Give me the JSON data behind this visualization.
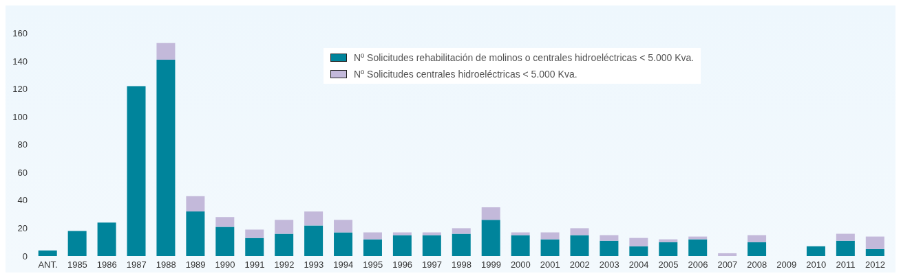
{
  "chart_data": {
    "type": "bar",
    "stacked": true,
    "categories": [
      "ANT.",
      "1985",
      "1986",
      "1987",
      "1988",
      "1989",
      "1990",
      "1991",
      "1992",
      "1993",
      "1994",
      "1995",
      "1996",
      "1997",
      "1998",
      "1999",
      "2000",
      "2001",
      "2002",
      "2003",
      "2004",
      "2005",
      "2006",
      "2007",
      "2008",
      "2009",
      "2010",
      "2011",
      "2012"
    ],
    "series": [
      {
        "name": "Nº Solicitudes rehabilitación de molinos o centrales hidroeléctricas < 5.000 Kva.",
        "color": "#00849b",
        "values": [
          4,
          18,
          24,
          122,
          141,
          32,
          21,
          13,
          16,
          22,
          17,
          12,
          15,
          15,
          16,
          26,
          15,
          12,
          15,
          11,
          7,
          10,
          12,
          0,
          10,
          0,
          7,
          11,
          5
        ]
      },
      {
        "name": "Nº Solicitudes centrales hidroeléctricas < 5.000 Kva.",
        "color": "#c3b9da",
        "values": [
          0,
          0,
          0,
          0,
          12,
          11,
          7,
          6,
          10,
          10,
          9,
          5,
          2,
          2,
          4,
          9,
          2,
          5,
          5,
          4,
          6,
          2,
          2,
          2,
          5,
          0,
          0,
          5,
          9
        ]
      }
    ],
    "ylim": [
      0,
      178
    ],
    "yticks": [
      0,
      20,
      40,
      60,
      80,
      100,
      120,
      140,
      160
    ],
    "legend": "top"
  }
}
